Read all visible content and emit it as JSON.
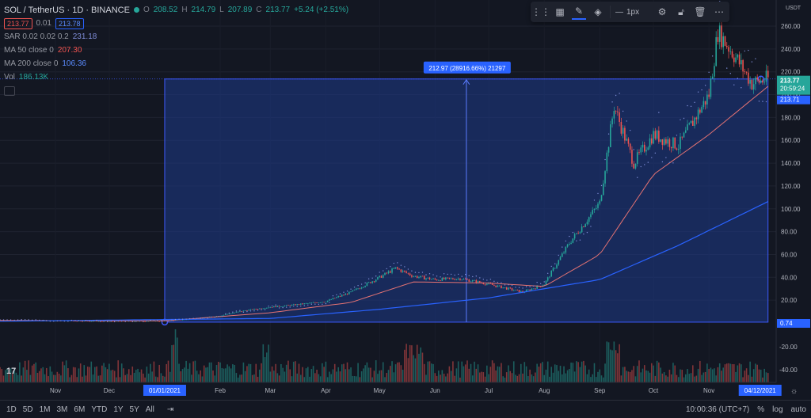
{
  "header": {
    "symbol_line": "SOL / TetherUS · 1D · BINANCE",
    "ohlc": {
      "o_label": "O",
      "o": "208.52",
      "h_label": "H",
      "h": "214.79",
      "l_label": "L",
      "l": "207.89",
      "c_label": "C",
      "c": "213.77",
      "change": "+5.24 (+2.51%)"
    },
    "bid": "213.77",
    "spread": "0.01",
    "ask": "213.78"
  },
  "indicators": [
    {
      "name": "SAR 0.02 0.02 0.2",
      "value": "231.18",
      "color": "#7e8cd6"
    },
    {
      "name": "MA 50 close 0",
      "value": "207.30",
      "color": "#ef5350"
    },
    {
      "name": "MA 200 close 0",
      "value": "106.36",
      "color": "#2962ff"
    },
    {
      "name": "Vol",
      "value": "186.13K",
      "color": "#26a69a"
    }
  ],
  "toolbar": {
    "width_label": "1px"
  },
  "colors": {
    "up": "#26a69a",
    "down": "#ef5350",
    "ma50": "#e57373",
    "ma200": "#2962ff",
    "sar": "#7e8cd6",
    "range_fill": "#1e3b8a",
    "range_border": "#3d5afe"
  },
  "measure_label": "212.97 (28916.66%) 21297",
  "price_tags": {
    "current": "213.77",
    "countdown": "20:59:24",
    "ma50_tag": "213.71",
    "low_tag": "0.74",
    "usdt": "USDT"
  },
  "date_tags": {
    "start": "01/01/2021",
    "end": "04/12/2021"
  },
  "bottom": {
    "ranges": [
      "1D",
      "5D",
      "1M",
      "3M",
      "6M",
      "YTD",
      "1Y",
      "5Y",
      "All"
    ],
    "time": "10:00:36 (UTC+7)",
    "percent": "%",
    "log": "log",
    "auto": "auto"
  },
  "chart_data": {
    "type": "candlestick",
    "title": "SOL / TetherUS · 1D · BINANCE",
    "x_tick_labels": [
      "Nov",
      "Dec",
      "Feb",
      "Mar",
      "Apr",
      "May",
      "Jun",
      "Jul",
      "Aug",
      "Sep",
      "Oct",
      "Nov"
    ],
    "x_axis_range": [
      "2020-10-01",
      "2021-12-05"
    ],
    "y_ticks": [
      20,
      40,
      60,
      80,
      100,
      120,
      140,
      160,
      180,
      200,
      220,
      240,
      260
    ],
    "volume_ticks": [
      "-20.00",
      "-40.00"
    ],
    "ylim": [
      0,
      270
    ],
    "series": [
      {
        "name": "SOL/USDT Close",
        "points": [
          [
            "2020-10-01",
            2.5
          ],
          [
            "2020-11-01",
            2.1
          ],
          [
            "2020-12-01",
            1.6
          ],
          [
            "2021-01-01",
            1.8
          ],
          [
            "2021-01-20",
            4.0
          ],
          [
            "2021-02-01",
            6.5
          ],
          [
            "2021-02-15",
            11.0
          ],
          [
            "2021-03-01",
            14.0
          ],
          [
            "2021-03-15",
            16.0
          ],
          [
            "2021-04-01",
            19.0
          ],
          [
            "2021-04-15",
            27.0
          ],
          [
            "2021-05-01",
            40.0
          ],
          [
            "2021-05-10",
            48.0
          ],
          [
            "2021-05-20",
            41.0
          ],
          [
            "2021-06-01",
            38.0
          ],
          [
            "2021-06-15",
            39.0
          ],
          [
            "2021-07-01",
            34.0
          ],
          [
            "2021-07-20",
            27.0
          ],
          [
            "2021-08-01",
            34.0
          ],
          [
            "2021-08-15",
            70.0
          ],
          [
            "2021-09-01",
            105.0
          ],
          [
            "2021-09-09",
            190.0
          ],
          [
            "2021-09-20",
            140.0
          ],
          [
            "2021-10-01",
            165.0
          ],
          [
            "2021-10-15",
            155.0
          ],
          [
            "2021-11-01",
            200.0
          ],
          [
            "2021-11-06",
            255.0
          ],
          [
            "2021-11-15",
            235.0
          ],
          [
            "2021-11-25",
            210.0
          ],
          [
            "2021-12-04",
            213.77
          ]
        ]
      },
      {
        "name": "MA 50",
        "points": [
          [
            "2020-10-01",
            2.2
          ],
          [
            "2021-01-01",
            1.9
          ],
          [
            "2021-03-01",
            9.0
          ],
          [
            "2021-04-15",
            18.0
          ],
          [
            "2021-05-20",
            36.0
          ],
          [
            "2021-07-01",
            35.0
          ],
          [
            "2021-08-01",
            32.0
          ],
          [
            "2021-09-01",
            60.0
          ],
          [
            "2021-10-01",
            130.0
          ],
          [
            "2021-11-01",
            165.0
          ],
          [
            "2021-12-04",
            207.3
          ]
        ]
      },
      {
        "name": "MA 200",
        "points": [
          [
            "2020-10-01",
            1.5
          ],
          [
            "2021-03-01",
            4.0
          ],
          [
            "2021-05-01",
            12.0
          ],
          [
            "2021-07-01",
            22.0
          ],
          [
            "2021-09-01",
            38.0
          ],
          [
            "2021-10-15",
            68.0
          ],
          [
            "2021-12-04",
            106.36
          ]
        ]
      }
    ],
    "measured_range": {
      "start": "2021-01-01",
      "end": "2021-12-04",
      "low": 0.74,
      "high": 213.71
    }
  }
}
